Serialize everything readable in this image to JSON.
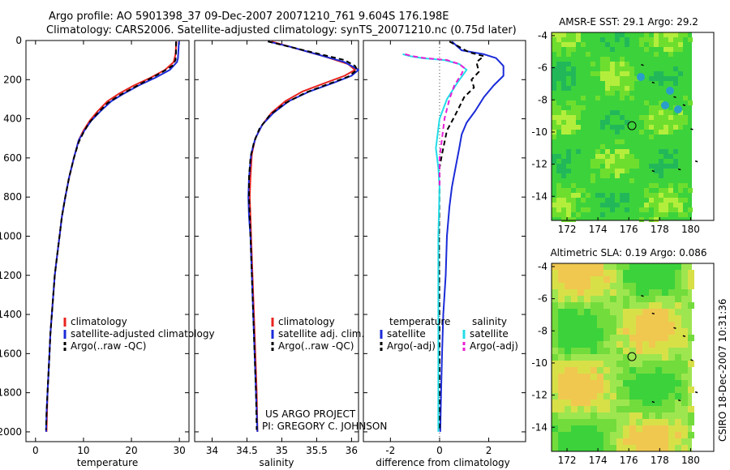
{
  "header": {
    "title_line1": "Argo profile: AO 5901398_37 09-Dec-2007 20071210_761 9.604S 176.198E",
    "title_line2": "Climatology: CARS2006. Satellite-adjusted climatology: synTS_20071210.nc (0.75d later)"
  },
  "side_label": "CSIRO 18-Dec-2007 10:31:36",
  "project_note": {
    "line1": "US ARGO PROJECT",
    "line2": "PI: GREGORY C. JOHNSON"
  },
  "colors": {
    "climatology": "#e8231e",
    "satellite": "#1b2bd8",
    "argo": "#000000",
    "sal_satellite": "#22dde8",
    "sal_argo": "#e81ed6",
    "zero_line": "#444444"
  },
  "chart_data": [
    {
      "type": "line",
      "id": "temperature",
      "xlabel": "temperature",
      "ylabel": "",
      "xlim": [
        -2,
        32
      ],
      "ylim": [
        2050,
        0
      ],
      "y_reversed": true,
      "xticks": [
        0,
        10,
        20,
        30
      ],
      "yticks": [
        0,
        200,
        400,
        600,
        800,
        1000,
        1200,
        1400,
        1600,
        1800,
        2000
      ],
      "legend": [
        "climatology",
        "satellite-adjusted climatology",
        "Argo(..raw -QC)"
      ],
      "legend_position": "lower-right",
      "series": [
        {
          "name": "climatology",
          "color": "#e8231e",
          "points": [
            [
              29.4,
              5
            ],
            [
              29.3,
              30
            ],
            [
              29.2,
              70
            ],
            [
              28.8,
              110
            ],
            [
              27,
              150
            ],
            [
              24,
              190
            ],
            [
              20.5,
              230
            ],
            [
              17.5,
              270
            ],
            [
              15,
              310
            ],
            [
              13,
              360
            ],
            [
              11.3,
              410
            ],
            [
              10,
              460
            ],
            [
              9,
              510
            ],
            [
              8,
              600
            ],
            [
              7,
              700
            ],
            [
              6.2,
              800
            ],
            [
              5.5,
              900
            ],
            [
              5,
              1000
            ],
            [
              4.5,
              1100
            ],
            [
              4,
              1200
            ],
            [
              3.7,
              1300
            ],
            [
              3.4,
              1400
            ],
            [
              3.1,
              1500
            ],
            [
              2.9,
              1600
            ],
            [
              2.7,
              1700
            ],
            [
              2.5,
              1800
            ],
            [
              2.4,
              1900
            ],
            [
              2.3,
              2000
            ]
          ]
        },
        {
          "name": "satellite-adjusted climatology",
          "color": "#1b2bd8",
          "points": [
            [
              29.9,
              5
            ],
            [
              29.8,
              50
            ],
            [
              29.7,
              90
            ],
            [
              29.5,
              110
            ],
            [
              28,
              150
            ],
            [
              25,
              190
            ],
            [
              21.5,
              230
            ],
            [
              18.5,
              270
            ],
            [
              15.8,
              310
            ],
            [
              13.6,
              360
            ],
            [
              11.6,
              410
            ],
            [
              10.2,
              460
            ],
            [
              9,
              510
            ],
            [
              8,
              600
            ],
            [
              7,
              700
            ],
            [
              6.2,
              800
            ],
            [
              5.5,
              900
            ],
            [
              5,
              1000
            ],
            [
              4.5,
              1100
            ],
            [
              4,
              1200
            ],
            [
              3.7,
              1300
            ],
            [
              3.4,
              1400
            ],
            [
              3.1,
              1500
            ],
            [
              2.9,
              1600
            ],
            [
              2.7,
              1700
            ],
            [
              2.5,
              1800
            ],
            [
              2.3,
              1900
            ],
            [
              2.2,
              2000
            ]
          ]
        },
        {
          "name": "Argo(..raw -QC)",
          "color": "#000000",
          "dashed": true,
          "points": [
            [
              29.3,
              5
            ],
            [
              29.3,
              60
            ],
            [
              29.2,
              100
            ],
            [
              28.5,
              130
            ],
            [
              26.5,
              160
            ],
            [
              23.5,
              200
            ],
            [
              20.5,
              240
            ],
            [
              17.5,
              280
            ],
            [
              15,
              320
            ],
            [
              13,
              370
            ],
            [
              11.2,
              420
            ],
            [
              10,
              470
            ],
            [
              9,
              520
            ],
            [
              8,
              600
            ],
            [
              7,
              700
            ],
            [
              6.2,
              800
            ],
            [
              5.5,
              900
            ],
            [
              5,
              1000
            ],
            [
              4.5,
              1100
            ],
            [
              4,
              1200
            ],
            [
              3.7,
              1300
            ],
            [
              3.4,
              1400
            ],
            [
              3.1,
              1500
            ],
            [
              2.9,
              1600
            ],
            [
              2.7,
              1700
            ],
            [
              2.5,
              1800
            ],
            [
              2.3,
              1900
            ],
            [
              2.2,
              1990
            ]
          ]
        }
      ]
    },
    {
      "type": "line",
      "id": "salinity",
      "xlabel": "salinity",
      "ylabel": "",
      "xlim": [
        33.75,
        36.1
      ],
      "ylim": [
        2050,
        0
      ],
      "y_reversed": true,
      "xticks": [
        34,
        34.5,
        35,
        35.5,
        36
      ],
      "legend": [
        "climatology",
        "satellite adj. clim.",
        "Argo(..raw -QC)"
      ],
      "legend_position": "lower-right",
      "series": [
        {
          "name": "climatology",
          "color": "#e8231e",
          "points": [
            [
              34.85,
              5
            ],
            [
              35.2,
              40
            ],
            [
              35.6,
              80
            ],
            [
              35.95,
              120
            ],
            [
              36.05,
              150
            ],
            [
              35.9,
              180
            ],
            [
              35.6,
              220
            ],
            [
              35.3,
              260
            ],
            [
              35.05,
              310
            ],
            [
              34.85,
              370
            ],
            [
              34.72,
              430
            ],
            [
              34.62,
              500
            ],
            [
              34.57,
              580
            ],
            [
              34.55,
              700
            ],
            [
              34.54,
              800
            ],
            [
              34.55,
              900
            ],
            [
              34.56,
              1000
            ],
            [
              34.58,
              1200
            ],
            [
              34.6,
              1400
            ],
            [
              34.62,
              1600
            ],
            [
              34.64,
              1800
            ],
            [
              34.65,
              2000
            ]
          ]
        },
        {
          "name": "satellite adj. clim.",
          "color": "#1b2bd8",
          "points": [
            [
              34.8,
              5
            ],
            [
              35.1,
              30
            ],
            [
              35.5,
              70
            ],
            [
              35.9,
              110
            ],
            [
              36.1,
              150
            ],
            [
              36,
              180
            ],
            [
              35.75,
              215
            ],
            [
              35.4,
              260
            ],
            [
              35.1,
              310
            ],
            [
              34.88,
              370
            ],
            [
              34.72,
              430
            ],
            [
              34.62,
              500
            ],
            [
              34.56,
              580
            ],
            [
              34.53,
              700
            ],
            [
              34.52,
              800
            ],
            [
              34.53,
              900
            ],
            [
              34.55,
              1000
            ],
            [
              34.57,
              1200
            ],
            [
              34.59,
              1400
            ],
            [
              34.61,
              1600
            ],
            [
              34.63,
              1800
            ],
            [
              34.65,
              2000
            ]
          ]
        },
        {
          "name": "Argo(..raw -QC)",
          "color": "#000000",
          "dashed": true,
          "points": [
            [
              34.8,
              5
            ],
            [
              35.15,
              35
            ],
            [
              35.55,
              70
            ],
            [
              35.9,
              100
            ],
            [
              36.05,
              130
            ],
            [
              36.08,
              150
            ],
            [
              35.95,
              185
            ],
            [
              35.65,
              225
            ],
            [
              35.35,
              265
            ],
            [
              35.05,
              320
            ],
            [
              34.83,
              380
            ],
            [
              34.68,
              450
            ],
            [
              34.6,
              520
            ],
            [
              34.55,
              600
            ],
            [
              34.53,
              700
            ],
            [
              34.53,
              800
            ],
            [
              34.54,
              900
            ],
            [
              34.55,
              1000
            ],
            [
              34.57,
              1200
            ],
            [
              34.59,
              1400
            ],
            [
              34.61,
              1600
            ],
            [
              34.63,
              1800
            ],
            [
              34.64,
              1990
            ]
          ]
        }
      ],
      "text_notes": [
        "US ARGO PROJECT",
        "PI: GREGORY C. JOHNSON"
      ]
    },
    {
      "type": "line",
      "id": "difference",
      "xlabel": "difference from climatology",
      "ylabel": "",
      "xlim": [
        -3.1,
        3.5
      ],
      "ylim": [
        2050,
        0
      ],
      "y_reversed": true,
      "xticks": [
        -2,
        0,
        2
      ],
      "legend_groups": [
        {
          "title": "temperature",
          "items": [
            "satellite",
            "Argo(-adj)"
          ]
        },
        {
          "title": "salinity",
          "items": [
            "satellite",
            "Argo(-adj)"
          ]
        }
      ],
      "legend_position": "lower-right",
      "series": [
        {
          "name": "temperature satellite",
          "color": "#1b2bd8",
          "points": [
            [
              0.5,
              5
            ],
            [
              0.9,
              50
            ],
            [
              1.8,
              70
            ],
            [
              2.3,
              90
            ],
            [
              2.6,
              130
            ],
            [
              2.6,
              180
            ],
            [
              2.2,
              230
            ],
            [
              1.8,
              290
            ],
            [
              1.45,
              360
            ],
            [
              1.1,
              420
            ],
            [
              0.9,
              480
            ],
            [
              0.8,
              550
            ],
            [
              0.65,
              650
            ],
            [
              0.5,
              750
            ],
            [
              0.4,
              850
            ],
            [
              0.3,
              1000
            ],
            [
              0.25,
              1200
            ],
            [
              0.15,
              1400
            ],
            [
              0.1,
              1600
            ],
            [
              0.06,
              1800
            ],
            [
              0.03,
              2000
            ]
          ]
        },
        {
          "name": "temperature Argo(-adj)",
          "color": "#000000",
          "dashed": true,
          "points": [
            [
              0.4,
              5
            ],
            [
              1.2,
              60
            ],
            [
              1.8,
              80
            ],
            [
              1.5,
              110
            ],
            [
              1.6,
              160
            ],
            [
              1.3,
              200
            ],
            [
              1.4,
              240
            ],
            [
              1,
              290
            ],
            [
              0.8,
              340
            ],
            [
              0.6,
              390
            ],
            [
              0.3,
              460
            ],
            [
              0.2,
              520
            ],
            [
              0.1,
              580
            ],
            [
              0,
              650
            ],
            [
              0,
              750
            ],
            [
              -0.02,
              1000
            ],
            [
              0,
              1500
            ],
            [
              0,
              1990
            ]
          ]
        },
        {
          "name": "salinity satellite",
          "color": "#22dde8",
          "points": [
            [
              -1.5,
              70
            ],
            [
              -1.2,
              80
            ],
            [
              -0.7,
              90
            ],
            [
              0.2,
              100
            ],
            [
              0.8,
              120
            ],
            [
              1.1,
              150
            ],
            [
              0.7,
              220
            ],
            [
              0.3,
              300
            ],
            [
              0.0,
              400
            ],
            [
              -0.1,
              500
            ],
            [
              -0.15,
              550
            ],
            [
              -0.05,
              650
            ],
            [
              0,
              750
            ],
            [
              -0.05,
              1000
            ],
            [
              -0.05,
              1500
            ],
            [
              -0.05,
              2000
            ]
          ]
        },
        {
          "name": "salinity Argo(-adj)",
          "color": "#e81ed6",
          "dashed": true,
          "points": [
            [
              -1.4,
              70
            ],
            [
              -1.1,
              80
            ],
            [
              -0.6,
              90
            ],
            [
              0.3,
              100
            ],
            [
              0.8,
              120
            ],
            [
              1.0,
              140
            ],
            [
              0.9,
              170
            ],
            [
              0.6,
              230
            ],
            [
              0.4,
              300
            ],
            [
              0.2,
              400
            ],
            [
              0.1,
              500
            ],
            [
              0,
              600
            ],
            [
              0,
              750
            ]
          ]
        }
      ]
    },
    {
      "type": "heatmap",
      "id": "sst_map",
      "title": "AMSR-E SST: 29.1 Argo: 29.2",
      "xlim": [
        171,
        181.5
      ],
      "ylim": [
        -15.5,
        -3.8
      ],
      "xticks": [
        172,
        174,
        176,
        178,
        180
      ],
      "yticks": [
        -4,
        -6,
        -8,
        -10,
        -12,
        -14
      ],
      "argo_position": [
        176.2,
        -9.604
      ]
    },
    {
      "type": "heatmap",
      "id": "sla_map",
      "title": "Altimetric SLA: 0.19 Argo: 0.086",
      "xlim": [
        171,
        181.5
      ],
      "ylim": [
        -15.5,
        -3.8
      ],
      "xticks": [
        172,
        174,
        176,
        178,
        180
      ],
      "yticks": [
        -4,
        -6,
        -8,
        -10,
        -12,
        -14
      ],
      "argo_position": [
        176.2,
        -9.604
      ]
    }
  ]
}
